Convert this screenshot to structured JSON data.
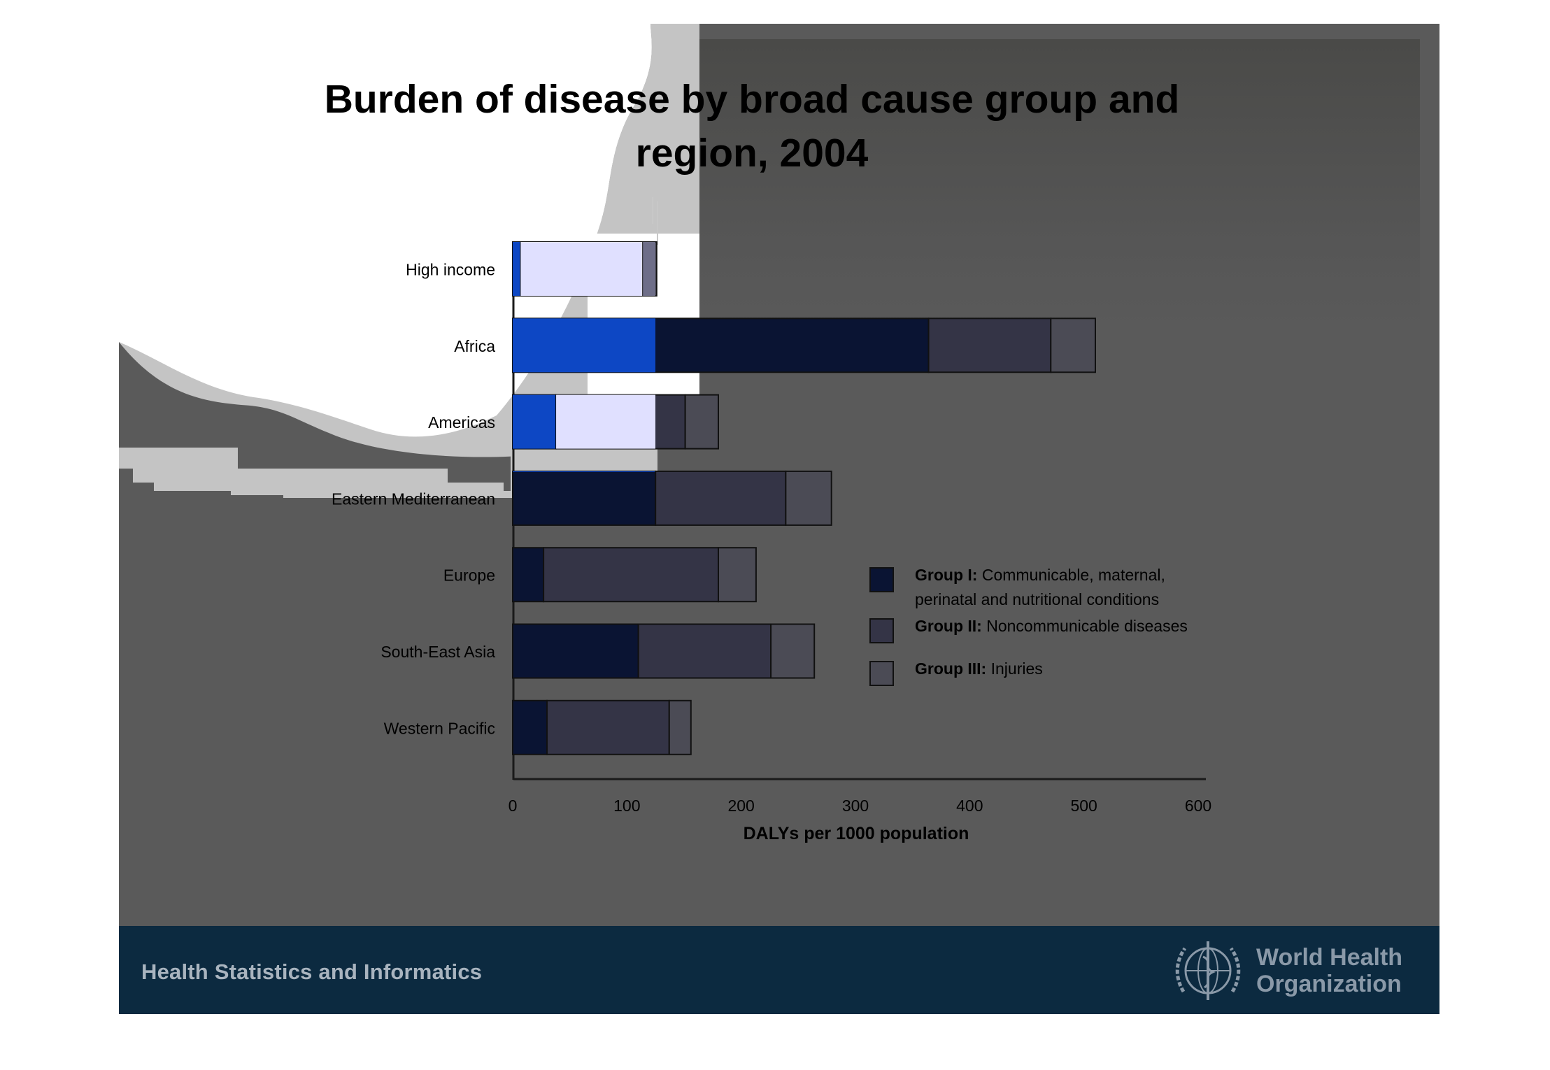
{
  "slide": {
    "footer_text": "Health Statistics and Informatics",
    "logo_text_line1": "World Health",
    "logo_text_line2": "Organization",
    "logo_icon": "who-emblem-icon"
  },
  "chart_data": {
    "type": "bar",
    "orientation": "horizontal",
    "stacked": true,
    "title_line1": "Burden of disease by broad cause group and",
    "title_line2": "region, 2004",
    "xlabel": "DALYs per 1000 population",
    "xlim": [
      0,
      600
    ],
    "xticks": [
      0,
      100,
      200,
      300,
      400,
      500,
      600
    ],
    "categories": [
      "High income",
      "Africa",
      "Americas",
      "Eastern Mediterranean",
      "Europe",
      "South-East Asia",
      "Western Pacific"
    ],
    "series": [
      {
        "name": "Group I: Communicable, maternal, perinatal and nutritional conditions",
        "bold": "Group I:",
        "rest": "Communicable, maternal,",
        "rest2": "perinatal and nutritional conditions",
        "values": [
          7,
          364,
          38,
          125,
          27,
          110,
          30
        ]
      },
      {
        "name": "Group II: Noncommunicable diseases",
        "bold": "Group II:",
        "rest": "Noncommunicable diseases",
        "values": [
          107,
          107,
          113,
          114,
          153,
          116,
          107
        ]
      },
      {
        "name": "Group III: Injuries",
        "bold": "Group III:",
        "rest": "Injuries",
        "values": [
          12,
          39,
          29,
          40,
          33,
          38,
          19
        ]
      }
    ],
    "colors": {
      "group1": "#0a1433",
      "group2": "#343446",
      "group3": "#4b4b55",
      "group1_overlay": "#0d47c4",
      "group2_overlay": "#e0e0ff",
      "group3_overlay": "#6e6e88"
    },
    "grid": false,
    "legend_position": "right"
  }
}
